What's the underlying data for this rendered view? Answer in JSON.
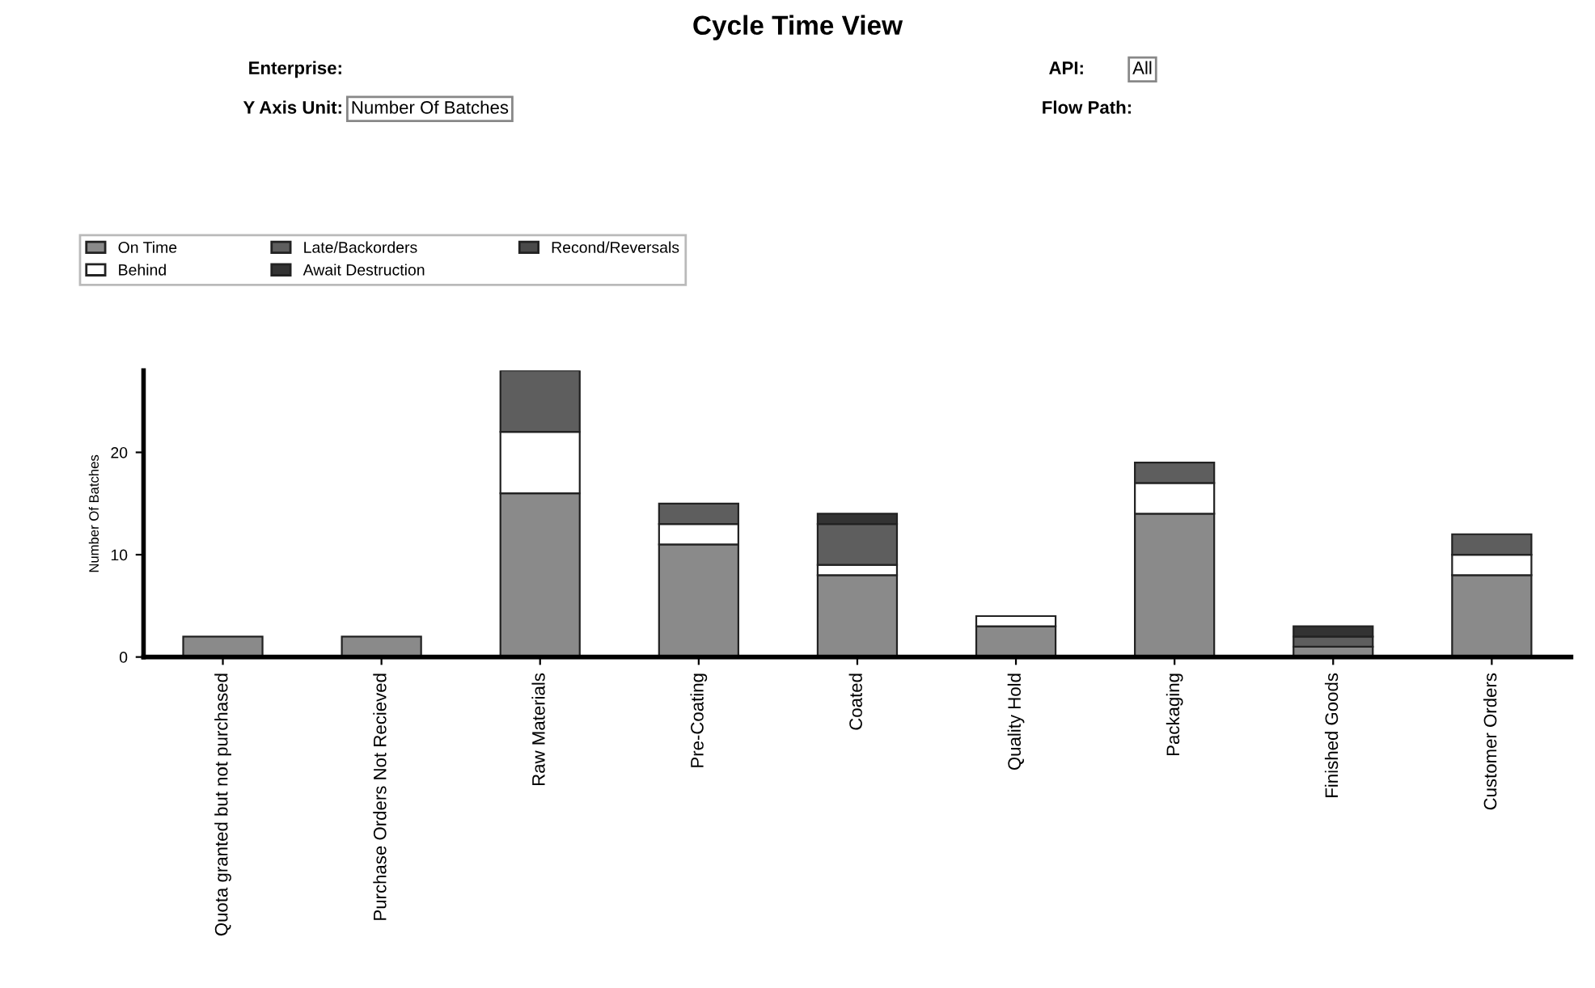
{
  "chart_data": {
    "type": "bar",
    "title": "Cycle Time View",
    "ylabel": "Number Of Batches",
    "annotations": [
      "Enterprise:",
      "Y Axis Unit:",
      "Number Of Batches",
      "API:",
      "All",
      "Flow Path:"
    ],
    "categories": [
      "Quota granted but not purchased",
      "Purchase Orders Not Recieved",
      "Raw Materials",
      "Pre-Coating",
      "Coated",
      "Quality Hold",
      "Packaging",
      "Finished Goods",
      "Customer Orders"
    ],
    "stacked": true,
    "ylim": [
      0,
      28
    ],
    "yticks": [
      0,
      10,
      20
    ],
    "grid": false,
    "legend": "top",
    "series": [
      {
        "name": "On Time",
        "color": "#8a8a8a",
        "values": [
          2,
          2,
          16,
          11,
          8,
          3,
          14,
          1,
          8
        ]
      },
      {
        "name": "Behind",
        "color": "#ffffff",
        "values": [
          0,
          0,
          6,
          2,
          1,
          1,
          3,
          0,
          2
        ]
      },
      {
        "name": "Late/Backorders",
        "color": "#5e5e5e",
        "values": [
          0,
          0,
          6,
          2,
          4,
          0,
          2,
          1,
          2
        ]
      },
      {
        "name": "Await Destruction",
        "color": "#333333",
        "values": [
          0,
          0,
          0,
          0,
          1,
          0,
          0,
          1,
          0
        ]
      },
      {
        "name": "Recond/Reversals",
        "color": "#4a4a4a",
        "values": [
          0,
          0,
          0,
          0,
          0,
          0,
          0,
          0,
          0
        ]
      }
    ]
  }
}
